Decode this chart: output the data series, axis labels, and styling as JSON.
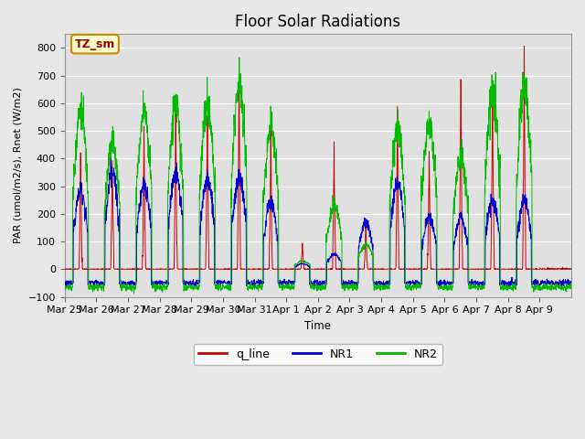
{
  "title": "Floor Solar Radiations",
  "ylabel": "PAR (umol/m2/s), Rnet (W/m2)",
  "xlabel": "Time",
  "ylim": [
    -100,
    850
  ],
  "yticks": [
    -100,
    0,
    100,
    200,
    300,
    400,
    500,
    600,
    700,
    800
  ],
  "outer_bg": "#e8e8e8",
  "plot_bg_color": "#e0e0e0",
  "grid_color": "#ffffff",
  "line_colors": {
    "q_line": "#cc0000",
    "NR1": "#0000cc",
    "NR2": "#00bb00"
  },
  "legend_labels": [
    "q_line",
    "NR1",
    "NR2"
  ],
  "annotation_text": "TZ_sm",
  "annotation_bg": "#ffffcc",
  "annotation_border": "#cc8800",
  "num_days": 16,
  "points_per_day": 144,
  "date_labels": [
    "Mar 25",
    "Mar 26",
    "Mar 27",
    "Mar 28",
    "Mar 29",
    "Mar 30",
    "Mar 31",
    "Apr 1",
    "Apr 2",
    "Apr 3",
    "Apr 4",
    "Apr 5",
    "Apr 6",
    "Apr 7",
    "Apr 8",
    "Apr 9"
  ],
  "day_peaks_red": [
    440,
    420,
    490,
    580,
    590,
    730,
    490,
    95,
    465,
    175,
    550,
    410,
    725,
    635,
    775,
    0
  ],
  "day_peaks_blue": [
    290,
    350,
    305,
    350,
    330,
    335,
    240,
    20,
    55,
    170,
    320,
    185,
    185,
    250,
    250,
    0
  ],
  "day_peaks_green": [
    580,
    465,
    575,
    595,
    595,
    670,
    515,
    30,
    230,
    90,
    510,
    530,
    405,
    655,
    655,
    0
  ],
  "night_base_red": 0,
  "night_base_blue": -50,
  "night_base_green": -65
}
